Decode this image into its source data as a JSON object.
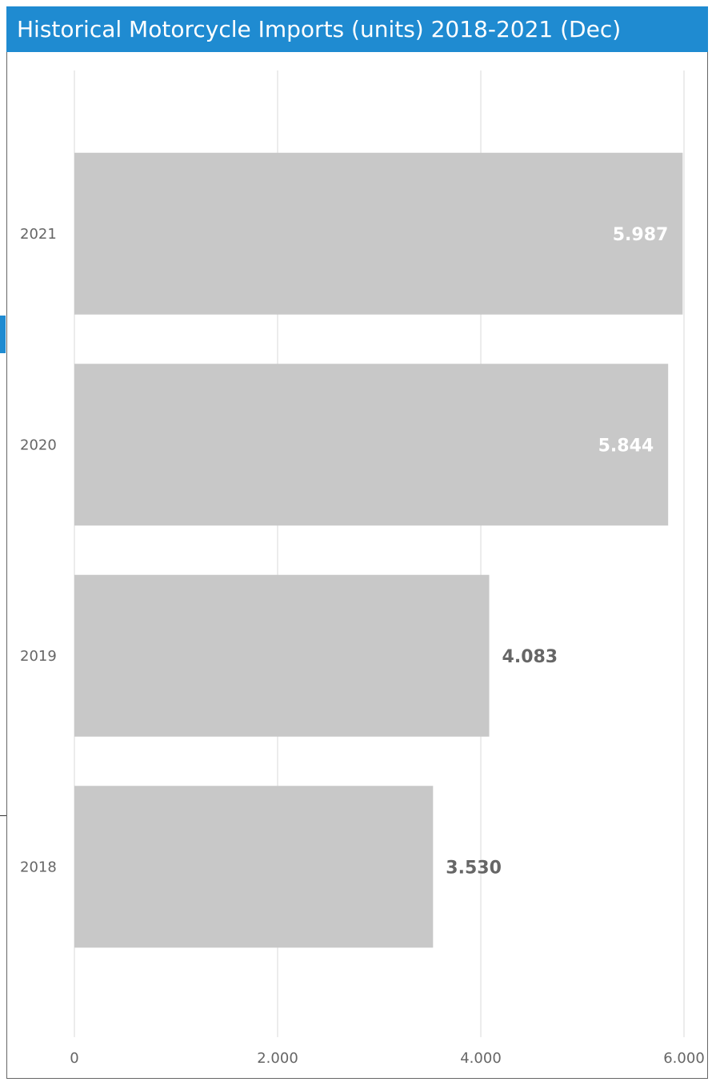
{
  "colors": {
    "title_bg": "#1f8bd1",
    "title_text": "#ffffff",
    "bar": "#c8c8c8",
    "gridline": "#e6e6e6",
    "axis_text": "#666666",
    "label_inside": "#ffffff",
    "label_outside": "#666666"
  },
  "chart_data": {
    "type": "bar",
    "orientation": "horizontal",
    "title": "Historical Motorcycle Imports (units) 2018-2021 (Dec)",
    "categories": [
      "2021",
      "2020",
      "2019",
      "2018"
    ],
    "values": [
      5987,
      5844,
      4083,
      3530
    ],
    "data_labels": [
      "5.987",
      "5.844",
      "4.083",
      "3.530"
    ],
    "xlim": [
      0,
      6000
    ],
    "x_ticks": [
      0,
      2000,
      4000,
      6000
    ],
    "x_tick_labels": [
      "0",
      "2.000",
      "4.000",
      "6.000"
    ],
    "xlabel": "",
    "ylabel": "",
    "grid": true,
    "legend": "none"
  }
}
